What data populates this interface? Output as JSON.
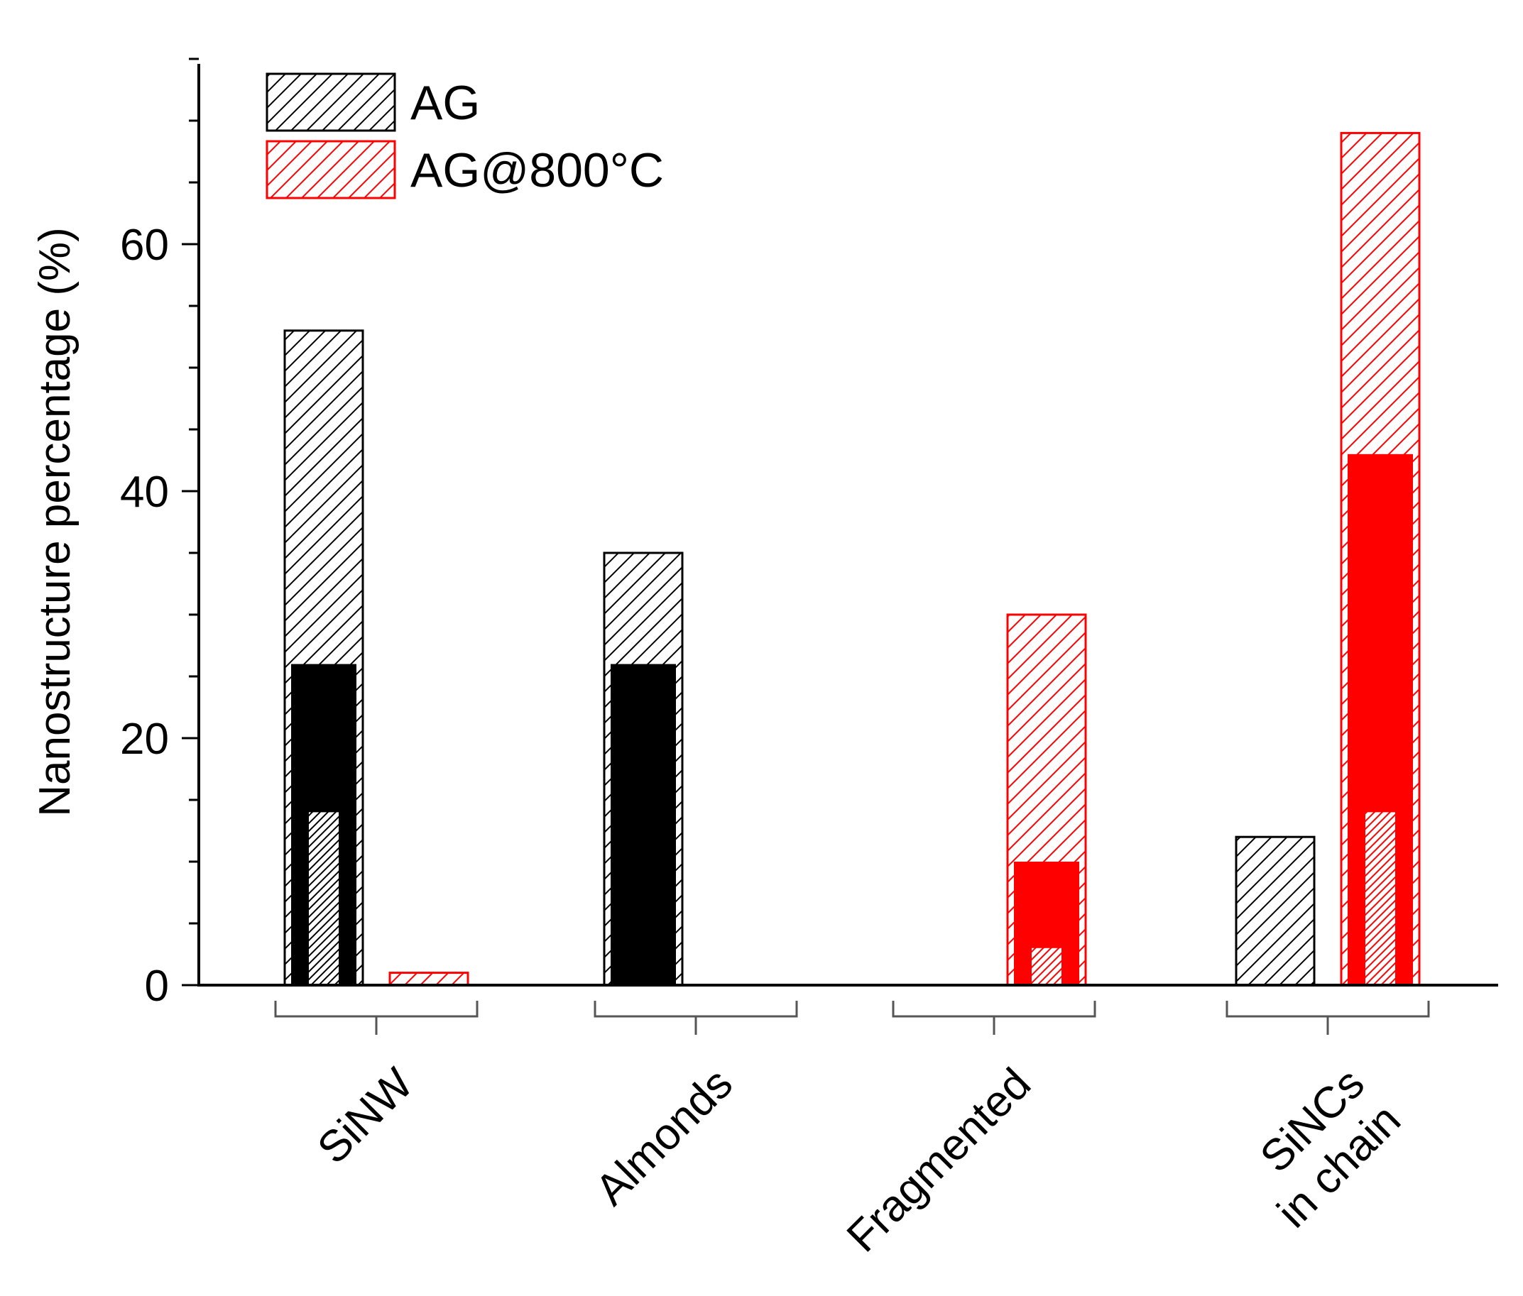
{
  "chart_data": {
    "type": "bar",
    "title": "",
    "xlabel": "",
    "ylabel": "Nanostructure percentage (%)",
    "ylim": [
      0,
      75
    ],
    "yticks": [
      0,
      20,
      40,
      60
    ],
    "grid": false,
    "legend_position": "top-left",
    "categories": [
      {
        "lines": [
          "SiNW"
        ]
      },
      {
        "lines": [
          "Almonds"
        ]
      },
      {
        "lines": [
          "Fragmented"
        ]
      },
      {
        "lines": [
          "SiNCs",
          "in chain"
        ]
      }
    ],
    "series": [
      {
        "name": "AG",
        "color": "#000000",
        "values": [
          53,
          35,
          0,
          12
        ]
      },
      {
        "name": "AG@800°C",
        "color": "#ff0000",
        "values": [
          1,
          0,
          30,
          69
        ]
      }
    ],
    "inner_solid_bars": [
      {
        "series": "AG",
        "values": [
          26,
          26,
          0,
          0
        ]
      },
      {
        "series": "AG@800°C",
        "values": [
          0,
          0,
          10,
          43
        ]
      }
    ],
    "inner_hatched_bars": [
      {
        "series": "AG",
        "values": [
          14,
          0,
          0,
          0
        ]
      },
      {
        "series": "AG@800°C",
        "values": [
          0,
          0,
          3,
          14
        ]
      }
    ]
  }
}
